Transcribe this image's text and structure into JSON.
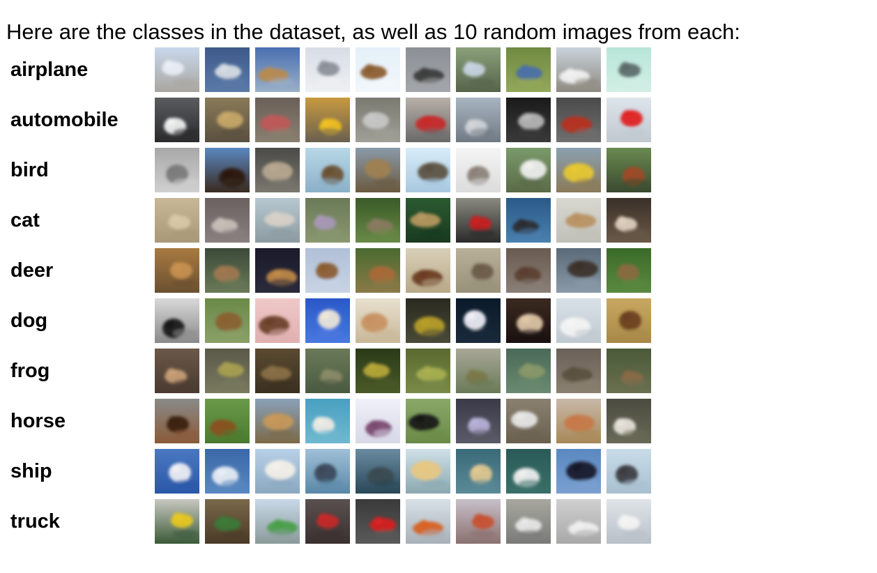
{
  "heading": "Here are the classes in the dataset, as well as 10 random images from each:",
  "classes": [
    {
      "label": "airplane",
      "icon": "airplane-icon",
      "thumbnails": [
        {
          "bg": [
            "#c8d8ec",
            "#a9a6a0"
          ],
          "fg": "#e9eef5"
        },
        {
          "bg": [
            "#3d5a8a",
            "#5c7aa8"
          ],
          "fg": "#d8dde4"
        },
        {
          "bg": [
            "#4a6fb0",
            "#9ab0c8"
          ],
          "fg": "#b98a4e"
        },
        {
          "bg": [
            "#d8dde6",
            "#eef0f3"
          ],
          "fg": "#8a8f98"
        },
        {
          "bg": [
            "#e4f0f8",
            "#f2f7fb"
          ],
          "fg": "#8a5a2e"
        },
        {
          "bg": [
            "#8c9096",
            "#a3a6aa"
          ],
          "fg": "#3a3a3a"
        },
        {
          "bg": [
            "#8aa07a",
            "#56644a"
          ],
          "fg": "#c8d4e2"
        },
        {
          "bg": [
            "#6f8a40",
            "#93a85a"
          ],
          "fg": "#4a6fa8"
        },
        {
          "bg": [
            "#c9d2dc",
            "#8e8a80"
          ],
          "fg": "#f2f2f2"
        },
        {
          "bg": [
            "#b8e6d8",
            "#d2eee5"
          ],
          "fg": "#5a6a6a"
        }
      ]
    },
    {
      "label": "automobile",
      "icon": "automobile-icon",
      "thumbnails": [
        {
          "bg": [
            "#5a5c60",
            "#2a2a2c"
          ],
          "fg": "#f2f2f2"
        },
        {
          "bg": [
            "#8a7a58",
            "#5a5040"
          ],
          "fg": "#c8a868"
        },
        {
          "bg": [
            "#6a6058",
            "#8a8070"
          ],
          "fg": "#c05858"
        },
        {
          "bg": [
            "#c89a40",
            "#6a6050"
          ],
          "fg": "#f0c020"
        },
        {
          "bg": [
            "#7a7a70",
            "#a0a098"
          ],
          "fg": "#c8c8c8"
        },
        {
          "bg": [
            "#b8b0a8",
            "#6a6a6a"
          ],
          "fg": "#c82828"
        },
        {
          "bg": [
            "#a8b4c0",
            "#707a84"
          ],
          "fg": "#d0d4d8"
        },
        {
          "bg": [
            "#1a1a1a",
            "#3a3a3a"
          ],
          "fg": "#b8b8b8"
        },
        {
          "bg": [
            "#4a4a4a",
            "#707070"
          ],
          "fg": "#b83020"
        },
        {
          "bg": [
            "#dde4ec",
            "#c0c8d0"
          ],
          "fg": "#e02020"
        }
      ]
    },
    {
      "label": "bird",
      "icon": "bird-icon",
      "thumbnails": [
        {
          "bg": [
            "#a8a8a8",
            "#d0d0d0"
          ],
          "fg": "#7a7a7a"
        },
        {
          "bg": [
            "#5a88c0",
            "#3a2a20"
          ],
          "fg": "#2a1a10"
        },
        {
          "bg": [
            "#4a4a48",
            "#7a786e"
          ],
          "fg": "#b8a890"
        },
        {
          "bg": [
            "#b8d8e8",
            "#8ab0c8"
          ],
          "fg": "#6a5030"
        },
        {
          "bg": [
            "#8a9aa8",
            "#6a5a40"
          ],
          "fg": "#a08050"
        },
        {
          "bg": [
            "#d8ecf8",
            "#a8c8e0"
          ],
          "fg": "#5a5040"
        },
        {
          "bg": [
            "#f4f4f4",
            "#dcdcdc"
          ],
          "fg": "#8a8078"
        },
        {
          "bg": [
            "#7a9a6a",
            "#5a6a48"
          ],
          "fg": "#f0f0f0"
        },
        {
          "bg": [
            "#8aa0b0",
            "#8a7a58"
          ],
          "fg": "#e8c830"
        },
        {
          "bg": [
            "#6a8a50",
            "#3a4a30"
          ],
          "fg": "#a04a28"
        }
      ]
    },
    {
      "label": "cat",
      "icon": "cat-icon",
      "thumbnails": [
        {
          "bg": [
            "#c8b898",
            "#a89878"
          ],
          "fg": "#d8c8a8"
        },
        {
          "bg": [
            "#6a6060",
            "#8a8080"
          ],
          "fg": "#c8c0b8"
        },
        {
          "bg": [
            "#b8c8d0",
            "#8a9aa0"
          ],
          "fg": "#d8d0c8"
        },
        {
          "bg": [
            "#6a7a58",
            "#8a9870"
          ],
          "fg": "#a898b8"
        },
        {
          "bg": [
            "#3a5a28",
            "#6a8a48"
          ],
          "fg": "#8a7a60"
        },
        {
          "bg": [
            "#2a5a30",
            "#1a3a20"
          ],
          "fg": "#b89860"
        },
        {
          "bg": [
            "#8a8a80",
            "#2a2a2a"
          ],
          "fg": "#c82020"
        },
        {
          "bg": [
            "#2a5a88",
            "#4a80b0"
          ],
          "fg": "#2a2a30"
        },
        {
          "bg": [
            "#d8d8d0",
            "#c0c0b8"
          ],
          "fg": "#b89060"
        },
        {
          "bg": [
            "#3a3028",
            "#6a5a48"
          ],
          "fg": "#e0d0c0"
        }
      ]
    },
    {
      "label": "deer",
      "icon": "deer-icon",
      "thumbnails": [
        {
          "bg": [
            "#a87a40",
            "#6a5030"
          ],
          "fg": "#c89050"
        },
        {
          "bg": [
            "#3a4a38",
            "#6a7a58"
          ],
          "fg": "#a07850"
        },
        {
          "bg": [
            "#1a1a2a",
            "#2a2a3a"
          ],
          "fg": "#c08848"
        },
        {
          "bg": [
            "#b0c0d8",
            "#c8d4e4"
          ],
          "fg": "#8a5a30"
        },
        {
          "bg": [
            "#4a6a30",
            "#8a7a48"
          ],
          "fg": "#a86a38"
        },
        {
          "bg": [
            "#d8d0b8",
            "#b8a888"
          ],
          "fg": "#6a3a20"
        },
        {
          "bg": [
            "#b8b098",
            "#98907a"
          ],
          "fg": "#6a5a48"
        },
        {
          "bg": [
            "#6a5a50",
            "#8a8078"
          ],
          "fg": "#5a4030"
        },
        {
          "bg": [
            "#5a6a78",
            "#8a9aa8"
          ],
          "fg": "#3a3028"
        },
        {
          "bg": [
            "#3a6a28",
            "#5a8a40"
          ],
          "fg": "#8a6a40"
        }
      ]
    },
    {
      "label": "dog",
      "icon": "dog-icon",
      "thumbnails": [
        {
          "bg": [
            "#d8d8d8",
            "#8a8a8a"
          ],
          "fg": "#1a1a1a"
        },
        {
          "bg": [
            "#6a8a48",
            "#8aa068"
          ],
          "fg": "#8a6030"
        },
        {
          "bg": [
            "#f0c8c8",
            "#e0b0b0"
          ],
          "fg": "#6a4028"
        },
        {
          "bg": [
            "#2a58c8",
            "#4a78e0"
          ],
          "fg": "#f0e8d8"
        },
        {
          "bg": [
            "#e8e0d0",
            "#c8b898"
          ],
          "fg": "#c89060"
        },
        {
          "bg": [
            "#2a2a20",
            "#4a4a38"
          ],
          "fg": "#b8a028"
        },
        {
          "bg": [
            "#0a1a2a",
            "#1a2a3a"
          ],
          "fg": "#f0f0f8"
        },
        {
          "bg": [
            "#3a2a20",
            "#1a1010"
          ],
          "fg": "#e0c8a8"
        },
        {
          "bg": [
            "#d8e0e8",
            "#c0c8d0"
          ],
          "fg": "#f4f4f4"
        },
        {
          "bg": [
            "#c8a860",
            "#a88848"
          ],
          "fg": "#6a4020"
        }
      ]
    },
    {
      "label": "frog",
      "icon": "frog-icon",
      "thumbnails": [
        {
          "bg": [
            "#6a5848",
            "#4a3a30"
          ],
          "fg": "#c8a078"
        },
        {
          "bg": [
            "#5a5848",
            "#7a7a60"
          ],
          "fg": "#a8a050"
        },
        {
          "bg": [
            "#5a4a30",
            "#3a3020"
          ],
          "fg": "#8a7048"
        },
        {
          "bg": [
            "#6a7a58",
            "#4a5a40"
          ],
          "fg": "#8a8a68"
        },
        {
          "bg": [
            "#2a3a18",
            "#4a5a28"
          ],
          "fg": "#b8a838"
        },
        {
          "bg": [
            "#5a6a30",
            "#7a8a48"
          ],
          "fg": "#a8b050"
        },
        {
          "bg": [
            "#a8a898",
            "#6a7a58"
          ],
          "fg": "#7a7848"
        },
        {
          "bg": [
            "#4a6a58",
            "#6a8a70"
          ],
          "fg": "#8a9868"
        },
        {
          "bg": [
            "#6a6058",
            "#8a8070"
          ],
          "fg": "#5a5040"
        },
        {
          "bg": [
            "#4a5a38",
            "#6a7050"
          ],
          "fg": "#8a6a48"
        }
      ]
    },
    {
      "label": "horse",
      "icon": "horse-icon",
      "thumbnails": [
        {
          "bg": [
            "#8a8a88",
            "#8a5a38"
          ],
          "fg": "#3a2010"
        },
        {
          "bg": [
            "#6a9a48",
            "#4a7a30"
          ],
          "fg": "#8a5020"
        },
        {
          "bg": [
            "#8aa0b8",
            "#7a6a48"
          ],
          "fg": "#c89858"
        },
        {
          "bg": [
            "#48a0c0",
            "#70b8d0"
          ],
          "fg": "#f0ece4"
        },
        {
          "bg": [
            "#f0f0f8",
            "#d8d8e8"
          ],
          "fg": "#7a4870"
        },
        {
          "bg": [
            "#8aa868",
            "#6a8a48"
          ],
          "fg": "#1a1a1a"
        },
        {
          "bg": [
            "#3a3a48",
            "#5a5a68"
          ],
          "fg": "#b8b0d8"
        },
        {
          "bg": [
            "#8a8070",
            "#6a6050"
          ],
          "fg": "#e8e8e8"
        },
        {
          "bg": [
            "#c8b8a8",
            "#a88858"
          ],
          "fg": "#c87848"
        },
        {
          "bg": [
            "#4a4a40",
            "#6a6a58"
          ],
          "fg": "#e8e4dc"
        }
      ]
    },
    {
      "label": "ship",
      "icon": "ship-icon",
      "thumbnails": [
        {
          "bg": [
            "#4a78c0",
            "#2a58a8"
          ],
          "fg": "#f0f0f4"
        },
        {
          "bg": [
            "#3a68a8",
            "#5a88c0"
          ],
          "fg": "#e8eef4"
        },
        {
          "bg": [
            "#b8d0e8",
            "#8aa8c0"
          ],
          "fg": "#f4f0e8"
        },
        {
          "bg": [
            "#a0c0d8",
            "#5a88a8"
          ],
          "fg": "#3a4858"
        },
        {
          "bg": [
            "#6a8aa0",
            "#2a4858"
          ],
          "fg": "#3a4a50"
        },
        {
          "bg": [
            "#d0e0e8",
            "#8aa8b0"
          ],
          "fg": "#e8c880"
        },
        {
          "bg": [
            "#3a6a78",
            "#5a8a98"
          ],
          "fg": "#e0c890"
        },
        {
          "bg": [
            "#2a5a58",
            "#3a7068"
          ],
          "fg": "#f0f0f0"
        },
        {
          "bg": [
            "#5a88c0",
            "#7aa0d0"
          ],
          "fg": "#1a1a28"
        },
        {
          "bg": [
            "#c8dce8",
            "#a8c0d0"
          ],
          "fg": "#3a3a40"
        }
      ]
    },
    {
      "label": "truck",
      "icon": "truck-icon",
      "thumbnails": [
        {
          "bg": [
            "#c8c8c0",
            "#3a5a38"
          ],
          "fg": "#e8c820"
        },
        {
          "bg": [
            "#7a6848",
            "#4a3a28"
          ],
          "fg": "#3a7a38"
        },
        {
          "bg": [
            "#c8d8e8",
            "#8a9a9a"
          ],
          "fg": "#48a048"
        },
        {
          "bg": [
            "#5a5050",
            "#3a3030"
          ],
          "fg": "#c82828"
        },
        {
          "bg": [
            "#3a3a3a",
            "#5a5a5a"
          ],
          "fg": "#d82020"
        },
        {
          "bg": [
            "#d8e0e8",
            "#a8b0b8"
          ],
          "fg": "#d86020"
        },
        {
          "bg": [
            "#c8c0c8",
            "#8a7070"
          ],
          "fg": "#c85030"
        },
        {
          "bg": [
            "#a8a8a0",
            "#7a7a78"
          ],
          "fg": "#e8e8e8"
        },
        {
          "bg": [
            "#d0d0d0",
            "#a8a8a8"
          ],
          "fg": "#f0f0f0"
        },
        {
          "bg": [
            "#e0e4e8",
            "#b8c0c8"
          ],
          "fg": "#f4f4f4"
        }
      ]
    }
  ]
}
